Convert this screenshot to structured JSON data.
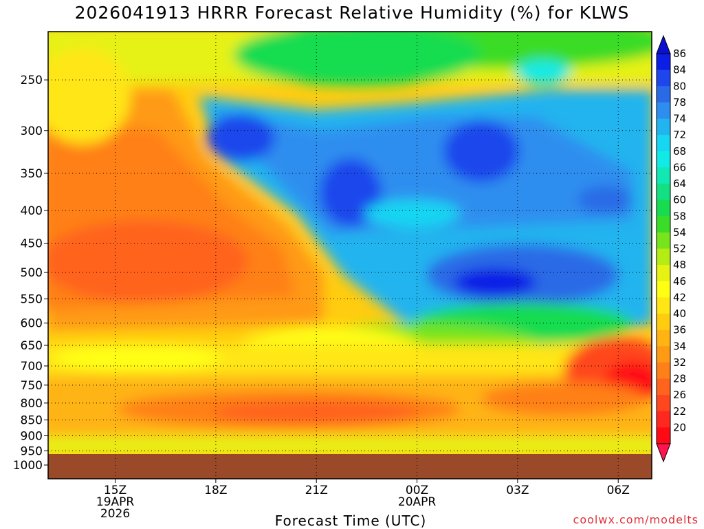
{
  "title": "2026041913 HRRR Forecast Relative Humidity (%) for KLWS",
  "xlabel": "Forecast Time (UTC)",
  "credit": "coolwx.com/modelts",
  "chart_data": {
    "type": "heatmap",
    "title": "2026041913 HRRR Forecast Relative Humidity (%) for KLWS",
    "xlabel": "Forecast Time (UTC)",
    "ylabel": "",
    "units": "%",
    "x_range_utc": [
      "2026-04-19 13Z",
      "2026-04-20 07Z"
    ],
    "y_range_hpa": [
      200,
      1000
    ],
    "y_scale": "log-pressure",
    "grid": true,
    "x_ticks": [
      {
        "hour": 15,
        "lines": [
          "15Z",
          "19APR",
          "2026"
        ]
      },
      {
        "hour": 18,
        "lines": [
          "18Z"
        ]
      },
      {
        "hour": 21,
        "lines": [
          "21Z"
        ]
      },
      {
        "hour": 24,
        "lines": [
          "00Z",
          "20APR"
        ]
      },
      {
        "hour": 27,
        "lines": [
          "03Z"
        ]
      },
      {
        "hour": 30,
        "lines": [
          "06Z"
        ]
      }
    ],
    "y_ticks": [
      250,
      300,
      350,
      400,
      450,
      500,
      550,
      600,
      650,
      700,
      750,
      800,
      850,
      900,
      950,
      1000
    ],
    "surface_pressure_hpa": 960,
    "colorbar": {
      "labels": [
        "86",
        "84",
        "80",
        "78",
        "74",
        "72",
        "68",
        "66",
        "64",
        "60",
        "58",
        "54",
        "52",
        "48",
        "46",
        "42",
        "40",
        "36",
        "34",
        "32",
        "28",
        "26",
        "22",
        "20"
      ],
      "colors": [
        "#0c1ee6",
        "#1e46ec",
        "#2a6ae6",
        "#2d8eef",
        "#22b4ef",
        "#16d6f2",
        "#12eae6",
        "#12e8b4",
        "#12e082",
        "#18dc50",
        "#3adc28",
        "#78e41e",
        "#b4ec14",
        "#e6f214",
        "#ffff14",
        "#ffe614",
        "#ffcc10",
        "#ffb414",
        "#ff9a14",
        "#ff8018",
        "#ff641e",
        "#ff461e",
        "#ff281e",
        "#ff0a14"
      ],
      "extend": "both"
    },
    "regions": [
      {
        "name": "upper-cloud-deck",
        "rh_approx": 78,
        "x_hours": [
          17.2,
          31
        ],
        "p_hpa": [
          280,
          580
        ]
      },
      {
        "name": "moist-core-0130Z",
        "rh_approx": 84,
        "x_hours": [
          25.5,
          27.2
        ],
        "p_hpa": [
          480,
          520
        ]
      },
      {
        "name": "dry-midlevels",
        "rh_approx": 30,
        "x_hours": [
          13,
          20
        ],
        "p_hpa": [
          300,
          600
        ]
      },
      {
        "name": "dry-layer-800mb",
        "rh_approx": 28,
        "x_hours": [
          16,
          23
        ],
        "p_hpa": [
          770,
          860
        ]
      },
      {
        "name": "dry-low-levels-late",
        "rh_approx": 22,
        "x_hours": [
          28.5,
          31
        ],
        "p_hpa": [
          700,
          800
        ]
      }
    ]
  }
}
